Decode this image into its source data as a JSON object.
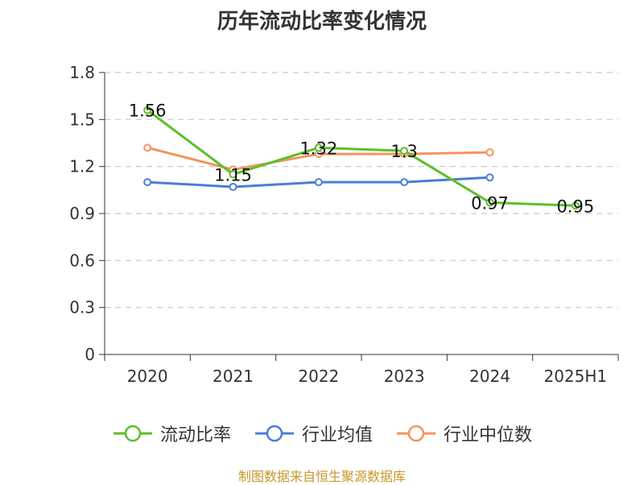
{
  "chart_title": "历年流动比率变化情况",
  "source_note": "制图数据来自恒生聚源数据库",
  "chart_data": {
    "type": "line",
    "title": "历年流动比率变化情况",
    "categories": [
      "2020",
      "2021",
      "2022",
      "2023",
      "2024",
      "2025H1"
    ],
    "ylim": [
      0,
      1.8
    ],
    "yticks": [
      "0",
      "0.3",
      "0.6",
      "0.9",
      "1.2",
      "1.5",
      "1.8"
    ],
    "grid": true,
    "legend_position": "bottom",
    "series": [
      {
        "name": "流动比率",
        "color": "#5cbf2a",
        "values": [
          1.56,
          1.15,
          1.32,
          1.3,
          0.97,
          0.95
        ],
        "labels": [
          "1.56",
          "1.15",
          "1.32",
          "1.3",
          "0.97",
          "0.95"
        ]
      },
      {
        "name": "行业均值",
        "color": "#4a7fd4",
        "values": [
          1.1,
          1.07,
          1.1,
          1.1,
          1.13,
          null
        ]
      },
      {
        "name": "行业中位数",
        "color": "#f5935e",
        "values": [
          1.32,
          1.18,
          1.28,
          1.28,
          1.29,
          null
        ]
      }
    ]
  }
}
